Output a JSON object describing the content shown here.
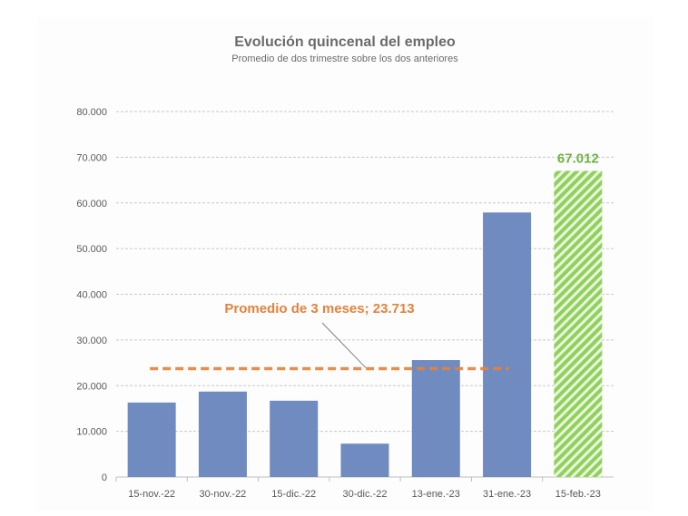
{
  "chart_data": {
    "type": "bar",
    "title": "Evolución quincenal del empleo",
    "subtitle": "Promedio de dos trimestre sobre los dos anteriores",
    "categories": [
      "15-nov.-22",
      "30-nov.-22",
      "15-dic.-22",
      "30-dic.-22",
      "13-ene.-23",
      "31-ene.-23",
      "15-feb.-23"
    ],
    "values": [
      16300,
      18700,
      16700,
      7300,
      25600,
      57900,
      67012
    ],
    "highlight_index": 6,
    "highlight_label": "67.012",
    "ylim": [
      0,
      80000
    ],
    "yticks": [
      "0",
      "10.000",
      "20.000",
      "30.000",
      "40.000",
      "50.000",
      "60.000",
      "70.000",
      "80.000"
    ],
    "grid": true,
    "average": {
      "value": 23713,
      "label": "Promedio de 3 meses; 23.713",
      "from_index": 0,
      "to_index": 5
    },
    "colors": {
      "bar": "#6f8bbf",
      "highlight": "#8fd15a",
      "average": "#e5823b",
      "label_green": "#6db33f",
      "text": "#595959",
      "grid": "#c8c8c8"
    }
  }
}
